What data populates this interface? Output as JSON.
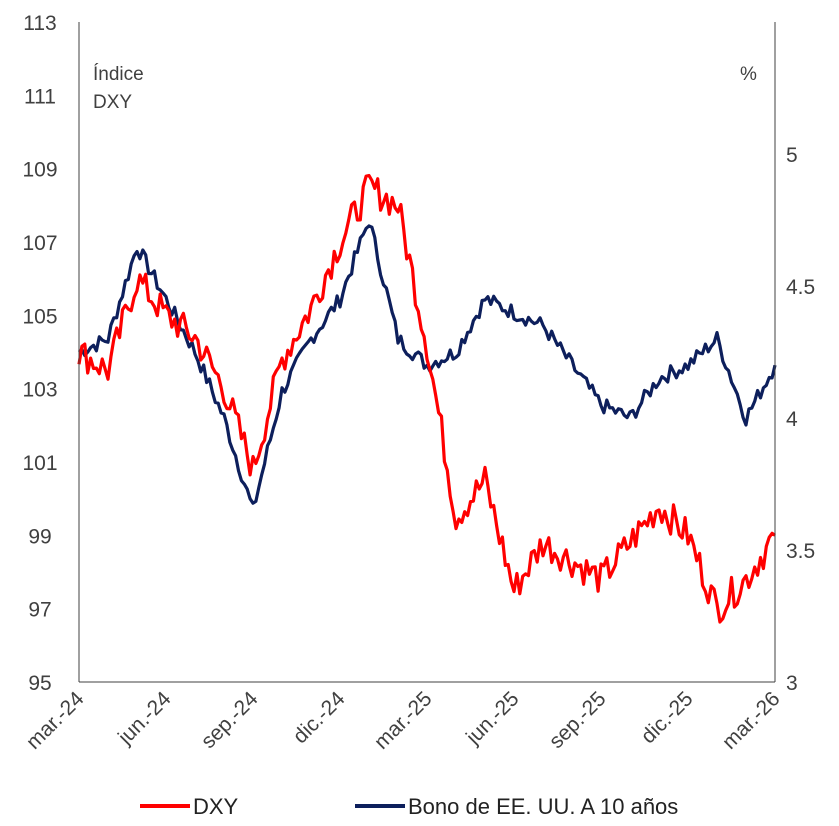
{
  "chart_data": {
    "type": "line",
    "title": "",
    "left_axis": {
      "unit_line1": "Índice",
      "unit_line2": "DXY",
      "ylim": [
        95,
        113
      ],
      "ticks": [
        95,
        97,
        99,
        101,
        103,
        105,
        107,
        109,
        111,
        113
      ]
    },
    "right_axis": {
      "unit": "%",
      "ylim": [
        3,
        5.5
      ],
      "ticks": [
        3,
        3.5,
        4,
        4.5,
        5
      ],
      "tick_labels": [
        "3",
        "3.5",
        "4",
        "4.5",
        "5"
      ]
    },
    "x_tick_labels": [
      "mar.-24",
      "jun.-24",
      "sep.-24",
      "dic.-24",
      "mar.-25",
      "jun.-25",
      "sep.-25",
      "dic.-25",
      "mar.-26"
    ],
    "x_range": [
      "2024-03",
      "2026-03"
    ],
    "grid": false,
    "legend_position": "bottom",
    "series": [
      {
        "name": "DXY",
        "axis": "left",
        "color": "#ff0000",
        "x": [
          "2024-03",
          "2024-04",
          "2024-05",
          "2024-06",
          "2024-07",
          "2024-08",
          "2024-09",
          "2024-10",
          "2024-11",
          "2024-12",
          "2025-01",
          "2025-02",
          "2025-03",
          "2025-04",
          "2025-05",
          "2025-06",
          "2025-07",
          "2025-08",
          "2025-09",
          "2025-10",
          "2025-11",
          "2025-12",
          "2026-01",
          "2026-02",
          "2026-03"
        ],
        "values": [
          104.0,
          103.5,
          106.0,
          105.0,
          104.4,
          103.0,
          100.8,
          103.8,
          105.2,
          107.0,
          108.5,
          108.0,
          104.2,
          99.5,
          100.5,
          97.5,
          98.8,
          98.3,
          97.8,
          98.8,
          99.8,
          99.0,
          97.0,
          97.8,
          99.0
        ]
      },
      {
        "name": "Bono de EE. UU. A 10 años",
        "axis": "right",
        "color": "#0d1f5c",
        "x": [
          "2024-03",
          "2024-04",
          "2024-05",
          "2024-06",
          "2024-07",
          "2024-08",
          "2024-09",
          "2024-10",
          "2024-11",
          "2024-12",
          "2025-01",
          "2025-02",
          "2025-03",
          "2025-04",
          "2025-05",
          "2025-06",
          "2025-07",
          "2025-08",
          "2025-09",
          "2025-10",
          "2025-11",
          "2025-12",
          "2026-01",
          "2026-02",
          "2026-03"
        ],
        "values": [
          4.25,
          4.3,
          4.65,
          4.45,
          4.25,
          4.0,
          3.65,
          4.1,
          4.3,
          4.45,
          4.75,
          4.3,
          4.2,
          4.25,
          4.45,
          4.4,
          4.35,
          4.2,
          4.05,
          4.0,
          4.15,
          4.2,
          4.3,
          4.0,
          4.2
        ]
      }
    ]
  }
}
